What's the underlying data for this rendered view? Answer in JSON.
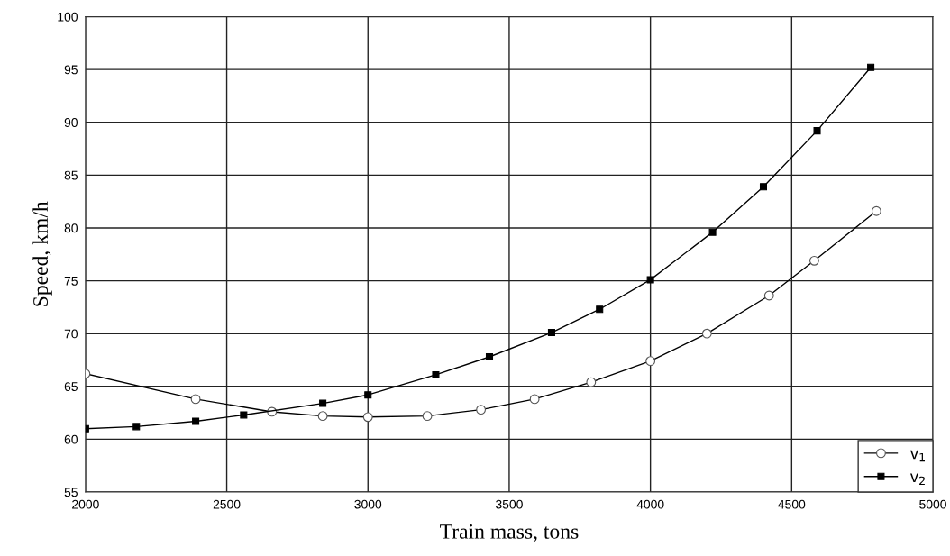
{
  "chart_data": {
    "type": "line",
    "xlabel": "Train mass, tons",
    "ylabel": "Speed, km/h",
    "xlim": [
      2000,
      5000
    ],
    "xticks": [
      2000,
      2500,
      3000,
      3500,
      4000,
      4500,
      5000
    ],
    "ylim": [
      55,
      100
    ],
    "yticks": [
      55,
      60,
      65,
      70,
      75,
      80,
      85,
      90,
      95,
      100
    ],
    "grid": true,
    "legend": "lower right",
    "series": [
      {
        "name": "v$_{1}$",
        "color": "#000000",
        "marker": "circle",
        "x": [
          2000,
          2390,
          2660,
          2840,
          3000,
          3210,
          3400,
          3590,
          3790,
          4000,
          4200,
          4420,
          4580,
          4800
        ],
        "values": [
          66.2,
          63.8,
          62.6,
          62.2,
          62.1,
          62.2,
          62.8,
          63.8,
          65.4,
          67.4,
          70.0,
          73.6,
          76.9,
          81.6
        ]
      },
      {
        "name": "v$_{2}$",
        "color": "#000000",
        "marker": "square",
        "x": [
          2000,
          2180,
          2390,
          2560,
          2840,
          3000,
          3240,
          3430,
          3650,
          3820,
          4000,
          4220,
          4400,
          4590,
          4780
        ],
        "values": [
          61.0,
          61.2,
          61.7,
          62.3,
          63.4,
          64.2,
          66.1,
          67.8,
          70.1,
          72.3,
          75.1,
          79.6,
          83.9,
          89.2,
          95.2
        ]
      }
    ]
  }
}
